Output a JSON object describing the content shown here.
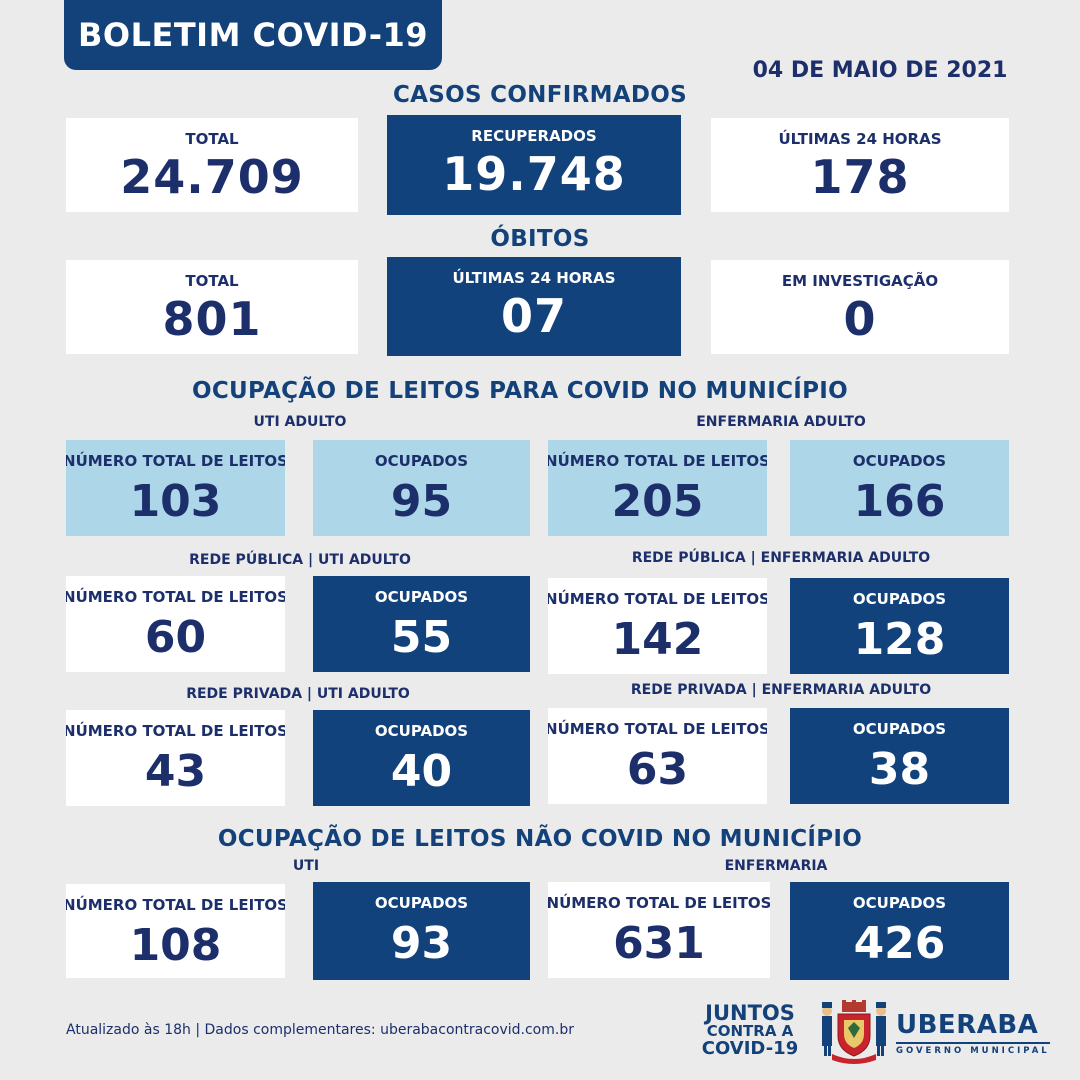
{
  "header": {
    "title": "BOLETIM COVID-19",
    "date": "04 DE MAIO DE 2021"
  },
  "casos": {
    "section_title": "CASOS CONFIRMADOS",
    "total": {
      "label": "TOTAL",
      "value": "24.709"
    },
    "recuperados": {
      "label": "RECUPERADOS",
      "value": "19.748"
    },
    "ultimas24": {
      "label": "ÚLTIMAS 24 HORAS",
      "value": "178"
    }
  },
  "obitos": {
    "section_title": "ÓBITOS",
    "total": {
      "label": "TOTAL",
      "value": "801"
    },
    "ultimas24": {
      "label": "ÚLTIMAS 24 HORAS",
      "value": "07"
    },
    "investigacao": {
      "label": "EM INVESTIGAÇÃO",
      "value": "0"
    }
  },
  "covid_leitos": {
    "section_title": "OCUPAÇÃO DE LEITOS PARA COVID NO MUNICÍPIO",
    "uti_adulto": {
      "title": "UTI ADULTO",
      "total": {
        "label": "NÚMERO TOTAL DE LEITOS",
        "value": "103"
      },
      "ocupados": {
        "label": "OCUPADOS",
        "value": "95"
      }
    },
    "enf_adulto": {
      "title": "ENFERMARIA ADULTO",
      "total": {
        "label": "NÚMERO TOTAL DE LEITOS",
        "value": "205"
      },
      "ocupados": {
        "label": "OCUPADOS",
        "value": "166"
      }
    },
    "pub_uti": {
      "title": "REDE PÚBLICA | UTI ADULTO",
      "total": {
        "label": "NÚMERO TOTAL DE LEITOS",
        "value": "60"
      },
      "ocupados": {
        "label": "OCUPADOS",
        "value": "55"
      }
    },
    "pub_enf": {
      "title": "REDE PÚBLICA | ENFERMARIA ADULTO",
      "total": {
        "label": "NÚMERO TOTAL DE LEITOS",
        "value": "142"
      },
      "ocupados": {
        "label": "OCUPADOS",
        "value": "128"
      }
    },
    "priv_uti": {
      "title": "REDE PRIVADA | UTI ADULTO",
      "total": {
        "label": "NÚMERO TOTAL DE LEITOS",
        "value": "43"
      },
      "ocupados": {
        "label": "OCUPADOS",
        "value": "40"
      }
    },
    "priv_enf": {
      "title": "REDE PRIVADA | ENFERMARIA ADULTO",
      "total": {
        "label": "NÚMERO TOTAL DE LEITOS",
        "value": "63"
      },
      "ocupados": {
        "label": "OCUPADOS",
        "value": "38"
      }
    }
  },
  "nao_covid": {
    "section_title": "OCUPAÇÃO DE LEITOS NÃO COVID NO MUNICÍPIO",
    "uti": {
      "title": "UTI",
      "total": {
        "label": "NÚMERO TOTAL DE LEITOS",
        "value": "108"
      },
      "ocupados": {
        "label": "OCUPADOS",
        "value": "93"
      }
    },
    "enf": {
      "title": "ENFERMARIA",
      "total": {
        "label": "NÚMERO TOTAL DE LEITOS",
        "value": "631"
      },
      "ocupados": {
        "label": "OCUPADOS",
        "value": "426"
      }
    }
  },
  "footer": {
    "updated": "Atualizado às 18h | Dados complementares: uberabacontracovid.com.br",
    "juntos_l1": "JUNTOS",
    "juntos_l2": "CONTRA A",
    "juntos_l3": "COVID-19",
    "city": "UBERABA",
    "gov": "GOVERNO MUNICIPAL"
  },
  "colors": {
    "navy": "#12427c",
    "light_blue": "#add6e8",
    "text_navy": "#1c2f6b",
    "background": "#ebebeb"
  }
}
